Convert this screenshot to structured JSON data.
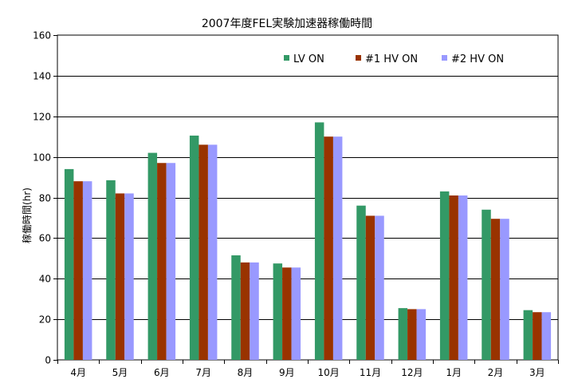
{
  "chart_data": {
    "type": "bar",
    "title": "2007年度FEL実験加速器稼働時間",
    "xlabel": "",
    "ylabel": "稼働時間(hr)",
    "ylim": [
      0,
      160
    ],
    "yticks": [
      0,
      20,
      40,
      60,
      80,
      100,
      120,
      140,
      160
    ],
    "grid": true,
    "legend_position": "top-right",
    "categories": [
      "4月",
      "5月",
      "6月",
      "7月",
      "8月",
      "9月",
      "10月",
      "11月",
      "12月",
      "1月",
      "2月",
      "3月"
    ],
    "series": [
      {
        "name": "LV ON",
        "color": "#339966",
        "values": [
          94,
          88.5,
          102,
          110.5,
          51.5,
          47.5,
          117,
          76,
          25.5,
          83,
          74,
          24.5
        ]
      },
      {
        "name": "#1  HV ON",
        "color": "#993300",
        "values": [
          88,
          82,
          97,
          106,
          48,
          45.5,
          110,
          71,
          25,
          81,
          69.5,
          23.5
        ]
      },
      {
        "name": "#2  HV ON",
        "color": "#9999FF",
        "values": [
          88,
          82,
          97,
          106,
          48,
          45.5,
          110,
          71,
          25,
          81,
          69.5,
          23.5
        ]
      }
    ]
  }
}
